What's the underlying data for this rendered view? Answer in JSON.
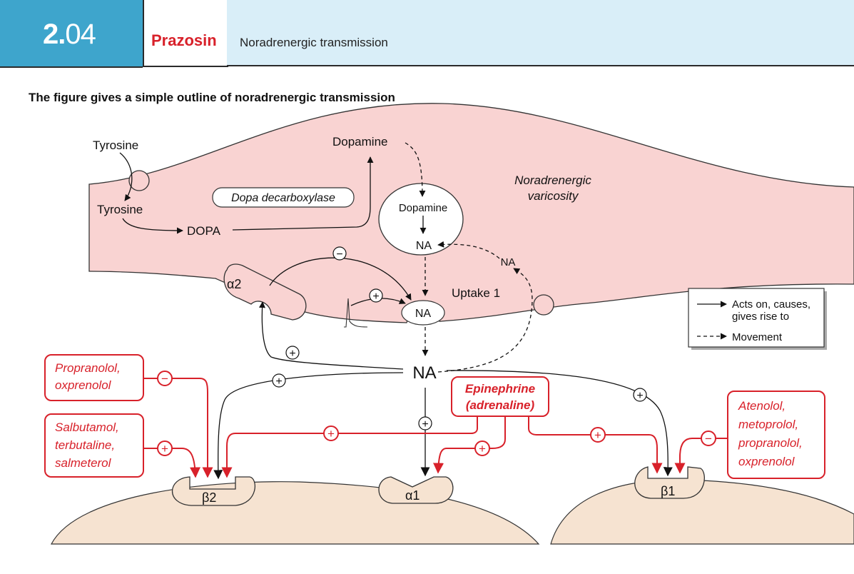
{
  "header": {
    "chapter_major": "2.",
    "chapter_minor": "04",
    "drug": "Prazosin",
    "section": "Noradrenergic transmission"
  },
  "caption": "The figure gives a simple outline of noradrenergic transmission",
  "diagram": {
    "varicosity_label_line1": "Noradrenergic",
    "varicosity_label_line2": "varicosity",
    "tyrosine_outside": "Tyrosine",
    "tyrosine_inside": "Tyrosine",
    "dopa": "DOPA",
    "enzyme": "Dopa decarboxylase",
    "dopamine_outside": "Dopamine",
    "dopamine_vesicle": "Dopamine",
    "na_vesicle": "NA",
    "na_released": "NA",
    "na_recycled": "NA",
    "na_cleft": "NA",
    "uptake": "Uptake 1",
    "alpha2": "α2",
    "alpha1": "α1",
    "beta1": "β1",
    "beta2": "β2",
    "plus": "+",
    "minus": "−"
  },
  "legend": {
    "solid_line1": "Acts on, causes,",
    "solid_line2": "gives rise to",
    "dashed": "Movement"
  },
  "drugs": {
    "propranolol_line1": "Propranolol,",
    "propranolol_line2": "oxprenolol",
    "salbutamol_line1": "Salbutamol,",
    "salbutamol_line2": "terbutaline,",
    "salbutamol_line3": "salmeterol",
    "epinephrine_line1": "Epinephrine",
    "epinephrine_line2": "(adrenaline)",
    "atenolol_line1": "Atenolol,",
    "atenolol_line2": "metoprolol,",
    "atenolol_line3": "propranolol,",
    "atenolol_line4": "oxprenolol"
  },
  "colors": {
    "header_blue": "#3ea5cc",
    "header_light": "#d9eef8",
    "accent_red": "#d8212a",
    "varicosity_fill": "#f9d3d2",
    "cell_fill": "#f6e3d1"
  }
}
